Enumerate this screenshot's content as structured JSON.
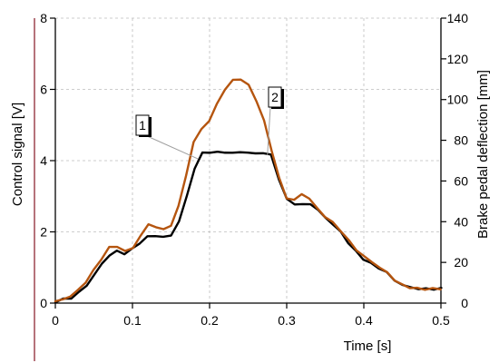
{
  "chart_data": {
    "type": "line",
    "xlabel": "Time [s]",
    "ylabel_left": "Control signal  [V]",
    "ylabel_right": "Brake pedal deflection [mm]",
    "xlim": [
      0,
      0.5
    ],
    "ylim_left": [
      0,
      8
    ],
    "ylim_right": [
      0,
      140
    ],
    "x_ticks": [
      "0",
      "0.1",
      "0.2",
      "0.3",
      "0.4",
      "0.5"
    ],
    "y_left_ticks": [
      "0",
      "2",
      "4",
      "6",
      "8"
    ],
    "y_right_ticks": [
      "0",
      "20",
      "40",
      "60",
      "80",
      "100",
      "120",
      "140"
    ],
    "grid": true,
    "annotations": [
      {
        "text": "1",
        "points_to": {
          "x": 0.185,
          "y": 4.05
        }
      },
      {
        "text": "2",
        "points_to": {
          "x": 0.275,
          "y": 4.15
        }
      }
    ],
    "series": [
      {
        "name": "1",
        "axis": "left",
        "color": "#000000",
        "x": [
          0,
          0.01,
          0.02,
          0.03,
          0.04,
          0.05,
          0.06,
          0.07,
          0.08,
          0.09,
          0.1,
          0.11,
          0.12,
          0.13,
          0.14,
          0.15,
          0.16,
          0.17,
          0.18,
          0.19,
          0.2,
          0.21,
          0.22,
          0.23,
          0.24,
          0.25,
          0.26,
          0.27,
          0.28,
          0.29,
          0.3,
          0.31,
          0.32,
          0.33,
          0.34,
          0.35,
          0.36,
          0.37,
          0.38,
          0.39,
          0.4,
          0.41,
          0.42,
          0.43,
          0.44,
          0.45,
          0.46,
          0.47,
          0.48,
          0.49,
          0.5
        ],
        "y": [
          0.05,
          0.1,
          0.15,
          0.3,
          0.5,
          0.8,
          1.1,
          1.35,
          1.45,
          1.4,
          1.5,
          1.7,
          1.85,
          1.9,
          1.85,
          1.9,
          2.3,
          3.0,
          3.8,
          4.2,
          4.25,
          4.22,
          4.25,
          4.2,
          4.25,
          4.22,
          4.2,
          4.22,
          4.15,
          3.5,
          2.9,
          2.8,
          2.75,
          2.8,
          2.6,
          2.4,
          2.2,
          2.0,
          1.7,
          1.45,
          1.25,
          1.1,
          1.0,
          0.85,
          0.65,
          0.5,
          0.45,
          0.4,
          0.4,
          0.4,
          0.4
        ]
      },
      {
        "name": "2",
        "axis": "left",
        "color": "#b5550f",
        "x": [
          0,
          0.01,
          0.02,
          0.03,
          0.04,
          0.05,
          0.06,
          0.07,
          0.08,
          0.09,
          0.1,
          0.11,
          0.12,
          0.13,
          0.14,
          0.15,
          0.16,
          0.17,
          0.18,
          0.19,
          0.2,
          0.21,
          0.22,
          0.23,
          0.24,
          0.25,
          0.26,
          0.27,
          0.28,
          0.29,
          0.3,
          0.31,
          0.32,
          0.33,
          0.34,
          0.35,
          0.36,
          0.37,
          0.38,
          0.39,
          0.4,
          0.41,
          0.42,
          0.43,
          0.44,
          0.45,
          0.46,
          0.47,
          0.48,
          0.49,
          0.5
        ],
        "y": [
          0.05,
          0.1,
          0.2,
          0.35,
          0.6,
          0.9,
          1.25,
          1.55,
          1.6,
          1.45,
          1.55,
          1.9,
          2.2,
          2.15,
          2.05,
          2.2,
          2.7,
          3.6,
          4.5,
          4.9,
          5.1,
          5.6,
          6.0,
          6.25,
          6.3,
          6.1,
          5.7,
          5.1,
          4.3,
          3.5,
          2.95,
          2.9,
          3.05,
          2.95,
          2.65,
          2.45,
          2.25,
          2.05,
          1.75,
          1.5,
          1.3,
          1.15,
          1.0,
          0.85,
          0.65,
          0.5,
          0.45,
          0.4,
          0.4,
          0.4,
          0.4
        ]
      }
    ]
  }
}
